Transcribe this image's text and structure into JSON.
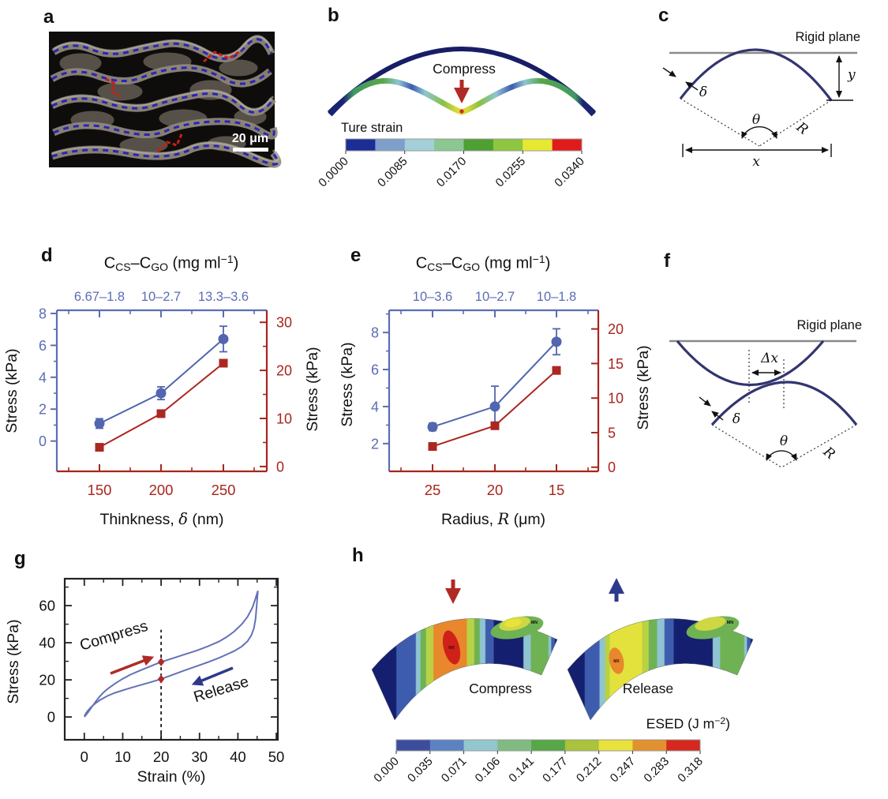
{
  "figure": {
    "letters": {
      "a": "a",
      "b": "b",
      "c": "c",
      "d": "d",
      "e": "e",
      "f": "f",
      "g": "g",
      "h": "h"
    }
  },
  "panel_a": {
    "scale_label": "20 μm"
  },
  "panel_b": {
    "compress_label": "Compress",
    "colorbar": {
      "title": "Ture strain",
      "ticks": [
        "0.0000",
        "0.0085",
        "0.0170",
        "0.0255",
        "0.0340"
      ],
      "colors": [
        "#1c2d96",
        "#7f9fcb",
        "#a3d0d8",
        "#8cc690",
        "#4fa032",
        "#8ec63f",
        "#e8e832",
        "#e01b1c"
      ]
    }
  },
  "panel_c": {
    "rigid_plane": "Rigid plane",
    "delta": "δ",
    "theta": "θ",
    "radius": "R",
    "x_label": "x",
    "y_label": "y"
  },
  "panel_f": {
    "rigid_plane": "Rigid plane",
    "delta_x": "Δx",
    "delta": "δ",
    "theta": "θ",
    "radius": "R"
  },
  "panel_h": {
    "compress_label": "Compress",
    "release_label": "Release",
    "mx": "MX",
    "mn": "MN",
    "esed_rich": [
      {
        "t": "ESED (J m"
      },
      {
        "t": "−2",
        "s": "sup"
      },
      {
        "t": ")"
      }
    ],
    "colorbar": {
      "ticks": [
        "0.000",
        "0.035",
        "0.071",
        "0.106",
        "0.141",
        "0.177",
        "0.212",
        "0.247",
        "0.283",
        "0.318"
      ],
      "colors": [
        "#3d4d9e",
        "#5c82c2",
        "#93c6cf",
        "#81bb82",
        "#57a647",
        "#a9c33c",
        "#e9e13c",
        "#e1912f",
        "#d5281f"
      ]
    }
  },
  "chart_data": [
    {
      "id": "d",
      "type": "line",
      "title_rich": [
        {
          "t": "C"
        },
        {
          "t": "CS",
          "s": "sub"
        },
        {
          "t": "–C"
        },
        {
          "t": "GO",
          "s": "sub"
        },
        {
          "t": " (mg ml"
        },
        {
          "t": "−1",
          "s": "sup"
        },
        {
          "t": ")"
        }
      ],
      "top_axis": {
        "labels": [
          "6.67–1.8",
          "10–2.7",
          "13.3–3.6"
        ],
        "color": "#5b6db5"
      },
      "x": {
        "tick_labels": [
          "150",
          "200",
          "250"
        ],
        "color": "#a8251d",
        "label_rich": [
          {
            "t": "Thinkness, "
          },
          {
            "t": "δ",
            "s": "i"
          },
          {
            "t": " (nm)"
          }
        ]
      },
      "left_axis": {
        "label": "Stress (kPa)",
        "ticks": [
          0,
          2,
          4,
          6,
          8
        ],
        "minor": [
          1,
          3,
          5,
          7
        ],
        "range": [
          -1.9,
          8.2
        ],
        "color": "#5b6db5"
      },
      "right_axis": {
        "label": "Stress (kPa)",
        "ticks": [
          0,
          10,
          20,
          30
        ],
        "minor": [
          5,
          15,
          25
        ],
        "range": [
          -1.0,
          32.5
        ],
        "color": "#a8251d"
      },
      "series": [
        {
          "name": "stress-vs-thickness-left",
          "axis": "left",
          "marker": "circle",
          "color": "#5265ae",
          "values": [
            1.1,
            3.0,
            6.4
          ],
          "err": [
            0.3,
            0.4,
            0.8
          ]
        },
        {
          "name": "stress-vs-thickness-right",
          "axis": "right",
          "marker": "square",
          "color": "#ab2721",
          "values": [
            4.0,
            11.0,
            21.5
          ],
          "err": [
            0,
            0,
            0
          ]
        }
      ]
    },
    {
      "id": "e",
      "type": "line",
      "title_rich": [
        {
          "t": "C"
        },
        {
          "t": "CS",
          "s": "sub"
        },
        {
          "t": "–C"
        },
        {
          "t": "GO",
          "s": "sub"
        },
        {
          "t": " (mg ml"
        },
        {
          "t": "−1",
          "s": "sup"
        },
        {
          "t": ")"
        }
      ],
      "top_axis": {
        "labels": [
          "10–3.6",
          "10–2.7",
          "10–1.8"
        ],
        "color": "#5b6db5"
      },
      "x": {
        "tick_labels": [
          "25",
          "20",
          "15"
        ],
        "color": "#a8251d",
        "label_rich": [
          {
            "t": "Radius, "
          },
          {
            "t": "R",
            "s": "i"
          },
          {
            "t": " (μm)"
          }
        ]
      },
      "left_axis": {
        "label": "Stress (kPa)",
        "ticks": [
          2,
          4,
          6,
          8
        ],
        "minor": [
          3,
          5,
          7,
          9
        ],
        "range": [
          0.5,
          9.2
        ],
        "color": "#5b6db5"
      },
      "right_axis": {
        "label": "Stress (kPa)",
        "ticks": [
          0,
          5,
          10,
          15,
          20
        ],
        "minor": [],
        "range": [
          -0.6,
          22.7
        ],
        "color": "#a8251d"
      },
      "series": [
        {
          "name": "stress-vs-radius-left",
          "axis": "left",
          "marker": "circle",
          "color": "#5265ae",
          "values": [
            2.9,
            4.0,
            7.5
          ],
          "err": [
            0.2,
            1.1,
            0.7
          ]
        },
        {
          "name": "stress-vs-radius-right",
          "axis": "right",
          "marker": "square",
          "color": "#ab2721",
          "values": [
            3.0,
            6.0,
            14.0
          ],
          "err": [
            0,
            0,
            0
          ]
        }
      ]
    },
    {
      "id": "g",
      "type": "line",
      "xlabel": "Strain (%)",
      "ylabel": "Stress (kPa)",
      "x_ticks": [
        0,
        10,
        20,
        30,
        40,
        50
      ],
      "x_minor": [
        5,
        15,
        25,
        35,
        45
      ],
      "y_ticks": [
        0,
        20,
        40,
        60
      ],
      "y_minor": [
        10,
        30,
        50,
        70
      ],
      "xlim": [
        -5.1,
        50.4
      ],
      "ylim": [
        -12.3,
        74.5
      ],
      "curve_color": "#6272b6",
      "loading": [
        [
          0,
          0
        ],
        [
          0.5,
          1.2
        ],
        [
          1,
          2.6
        ],
        [
          2,
          5.5
        ],
        [
          3,
          8.4
        ],
        [
          4,
          11
        ],
        [
          5,
          13.2
        ],
        [
          6,
          15
        ],
        [
          8,
          18
        ],
        [
          10,
          20.6
        ],
        [
          12,
          22.8
        ],
        [
          14,
          24.6
        ],
        [
          16,
          26.3
        ],
        [
          18,
          28
        ],
        [
          20,
          29.6
        ],
        [
          23,
          31.6
        ],
        [
          26,
          33.6
        ],
        [
          29,
          35.6
        ],
        [
          32,
          37.9
        ],
        [
          35,
          40.6
        ],
        [
          37,
          43
        ],
        [
          39,
          46
        ],
        [
          41,
          50
        ],
        [
          42.5,
          54
        ],
        [
          43.8,
          59
        ],
        [
          44.6,
          64
        ],
        [
          45.2,
          68
        ]
      ],
      "unloading": [
        [
          45.2,
          68
        ],
        [
          44.9,
          60
        ],
        [
          44.6,
          53
        ],
        [
          44.2,
          48
        ],
        [
          43.5,
          44
        ],
        [
          42.5,
          40.8
        ],
        [
          41,
          38
        ],
        [
          39,
          35.5
        ],
        [
          37,
          33.6
        ],
        [
          35,
          31.8
        ],
        [
          32,
          29.4
        ],
        [
          29,
          27.2
        ],
        [
          26,
          25
        ],
        [
          23,
          22.7
        ],
        [
          20,
          20.4
        ],
        [
          17,
          18.6
        ],
        [
          14,
          16.8
        ],
        [
          11,
          15
        ],
        [
          8,
          13
        ],
        [
          6,
          11.3
        ],
        [
          4,
          9
        ],
        [
          3,
          7.5
        ],
        [
          2,
          5.8
        ],
        [
          1,
          3.6
        ],
        [
          0.5,
          2.2
        ],
        [
          0,
          0.4
        ]
      ],
      "dashed_x": 20,
      "points": [
        [
          20,
          29.6
        ],
        [
          20,
          20.4
        ]
      ],
      "point_color": "#b02a25",
      "compress_label": "Compress",
      "release_label": "Release",
      "compress_color": "#b02a25",
      "release_color": "#2c3a8c"
    }
  ]
}
